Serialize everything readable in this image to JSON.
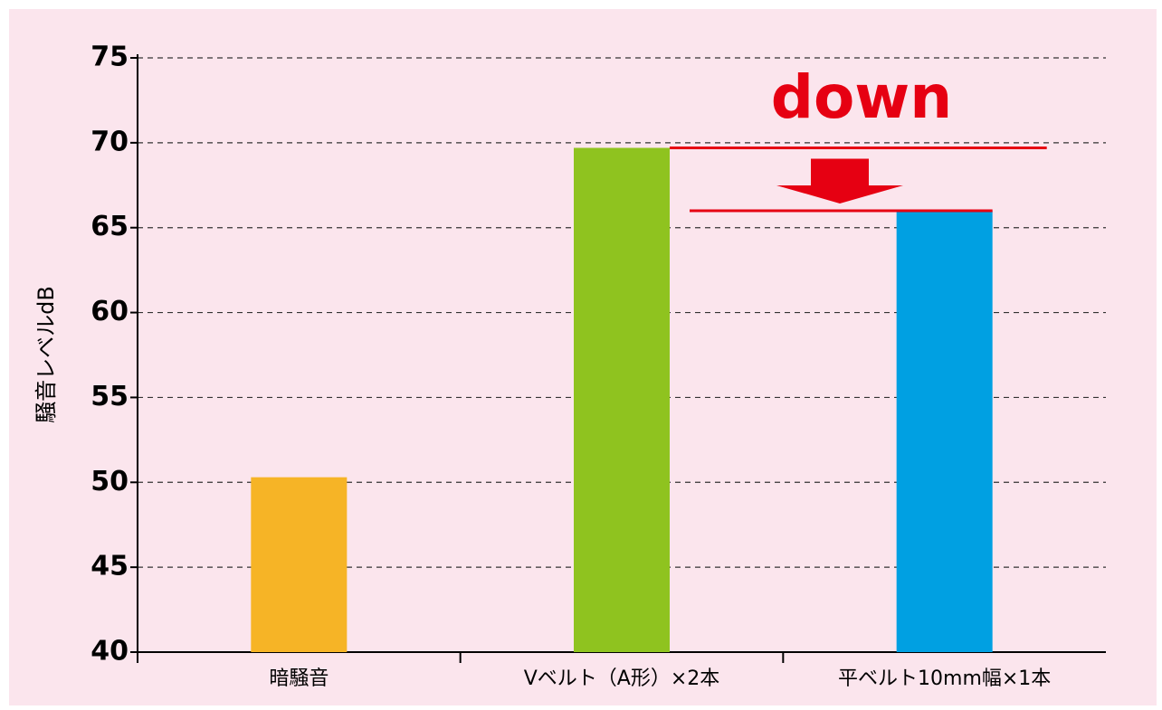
{
  "chart_data": {
    "type": "bar",
    "y_label": "騒音レベルdB",
    "annotation": "down",
    "categories": [
      "暗騒音",
      "Vベルト（A形）×2本",
      "平ベルト10mm幅×1本"
    ],
    "values": [
      50.3,
      69.7,
      66.0
    ],
    "colors": [
      "#f6b426",
      "#8fc31f",
      "#00a0e2"
    ],
    "ylim": [
      40,
      75
    ],
    "yticks": [
      40,
      45,
      50,
      55,
      60,
      65,
      70,
      75
    ],
    "grid": true
  }
}
